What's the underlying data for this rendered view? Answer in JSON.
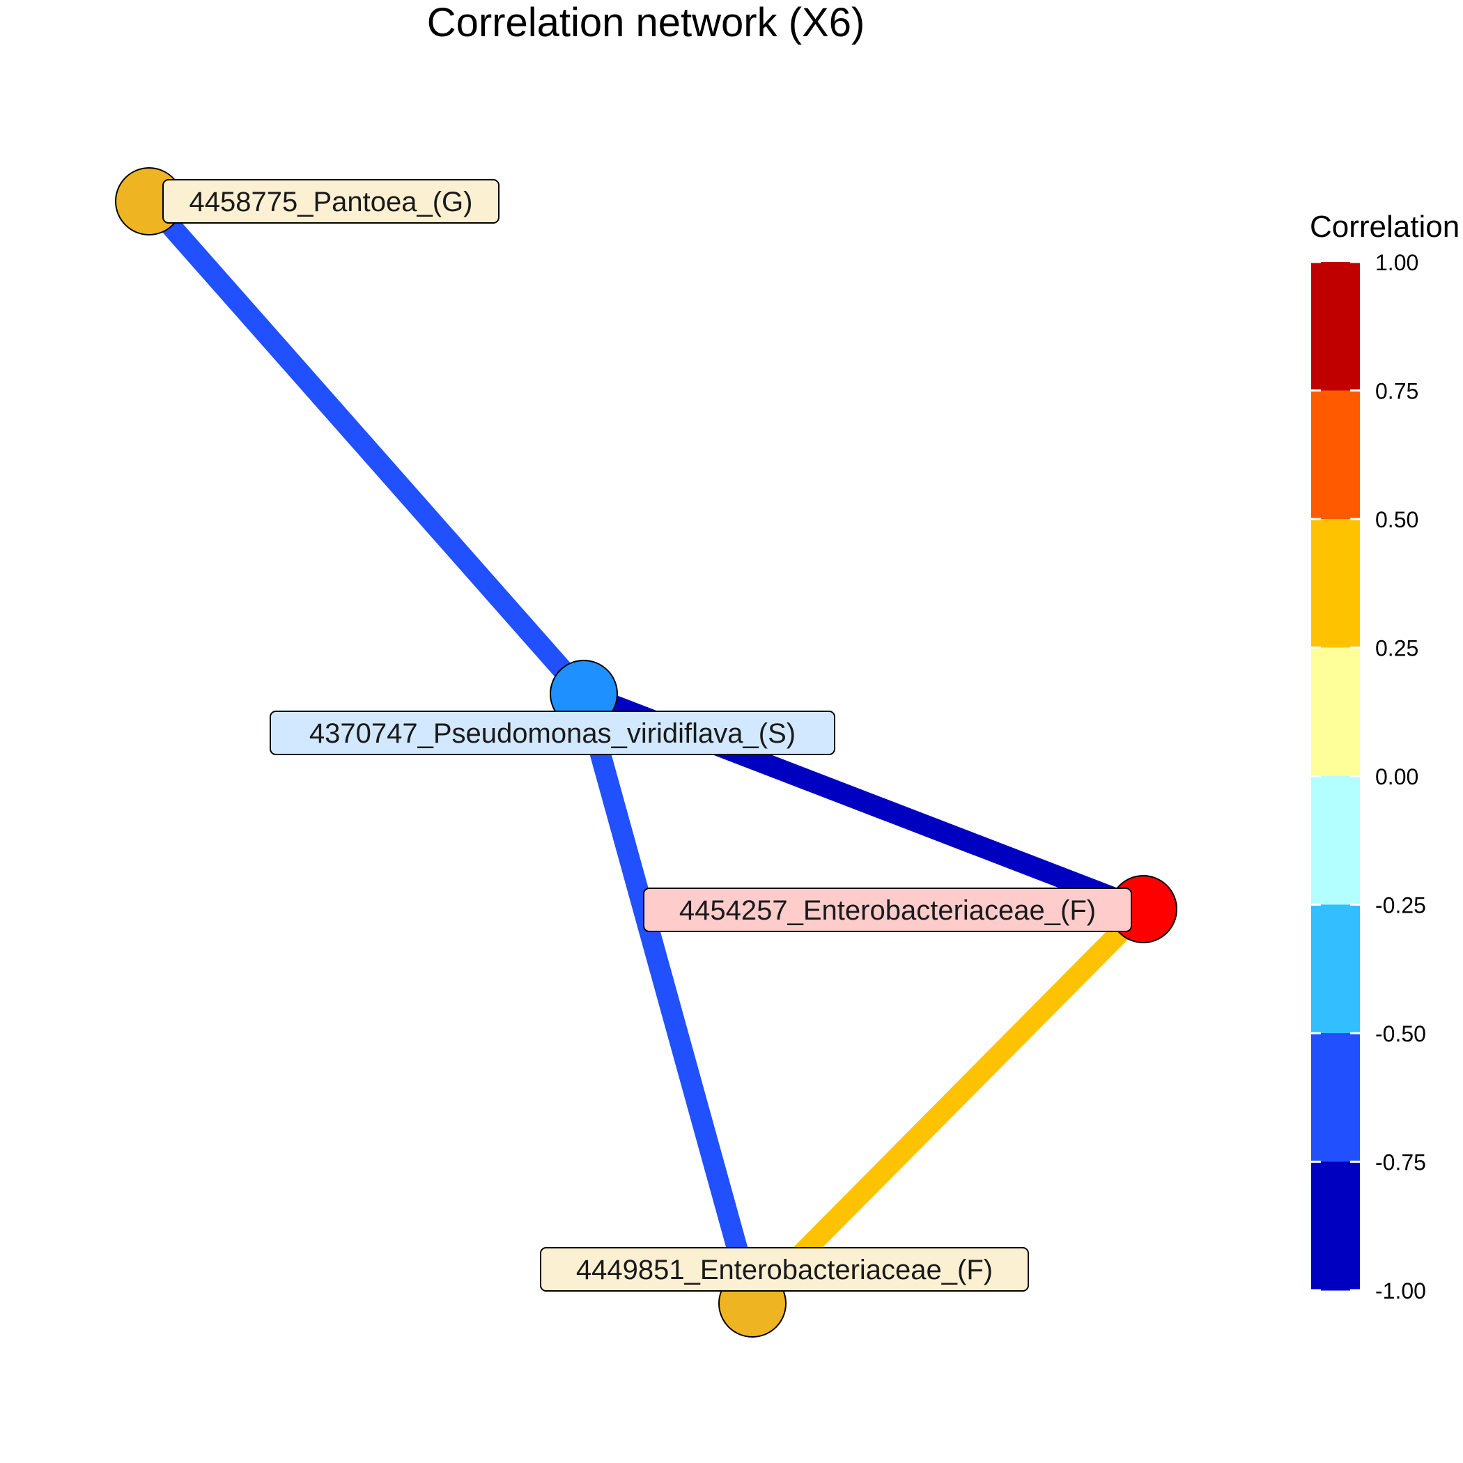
{
  "title": "Correlation network (X6)",
  "nodes": [
    {
      "id": "pantoea",
      "label": "4458775_Pantoea_(G)",
      "fill": "#EEB422",
      "label_bg": "#FCF0D3"
    },
    {
      "id": "pseudomonas",
      "label": "4370747_Pseudomonas_viridiflava_(S)",
      "fill": "#1E90FF",
      "label_bg": "#D2E8FF"
    },
    {
      "id": "entero1",
      "label": "4454257_Enterobacteriaceae_(F)",
      "fill": "#FF0000",
      "label_bg": "#FFCCCC"
    },
    {
      "id": "entero2",
      "label": "4449851_Enterobacteriaceae_(F)",
      "fill": "#EEB422",
      "label_bg": "#FCF0D3"
    }
  ],
  "edges": [
    {
      "source": "pantoea",
      "target": "pseudomonas",
      "color": "#2150FF",
      "correlation_bin": "-0.75 to -0.50"
    },
    {
      "source": "pseudomonas",
      "target": "entero1",
      "color": "#0000C0",
      "correlation_bin": "-1.00 to -0.75"
    },
    {
      "source": "pseudomonas",
      "target": "entero2",
      "color": "#2150FF",
      "correlation_bin": "-0.75 to -0.50"
    },
    {
      "source": "entero1",
      "target": "entero2",
      "color": "#FFC200",
      "correlation_bin": "0.25 to 0.50"
    }
  ],
  "legend": {
    "title": "Correlation",
    "ticks": [
      "1.00",
      "0.75",
      "0.50",
      "0.25",
      "0.00",
      "-0.25",
      "-0.50",
      "-0.75",
      "-1.00"
    ],
    "bins": [
      {
        "range": "0.75 to 1.00",
        "color": "#C00000"
      },
      {
        "range": "0.50 to 0.75",
        "color": "#FF5A00"
      },
      {
        "range": "0.25 to 0.50",
        "color": "#FFC200"
      },
      {
        "range": "0.00 to 0.25",
        "color": "#FFFF99"
      },
      {
        "range": "-0.25 to 0.00",
        "color": "#B3FFFF"
      },
      {
        "range": "-0.50 to -0.25",
        "color": "#33BEFF"
      },
      {
        "range": "-0.75 to -0.50",
        "color": "#2150FF"
      },
      {
        "range": "-1.00 to -0.75",
        "color": "#0000C0"
      }
    ]
  }
}
